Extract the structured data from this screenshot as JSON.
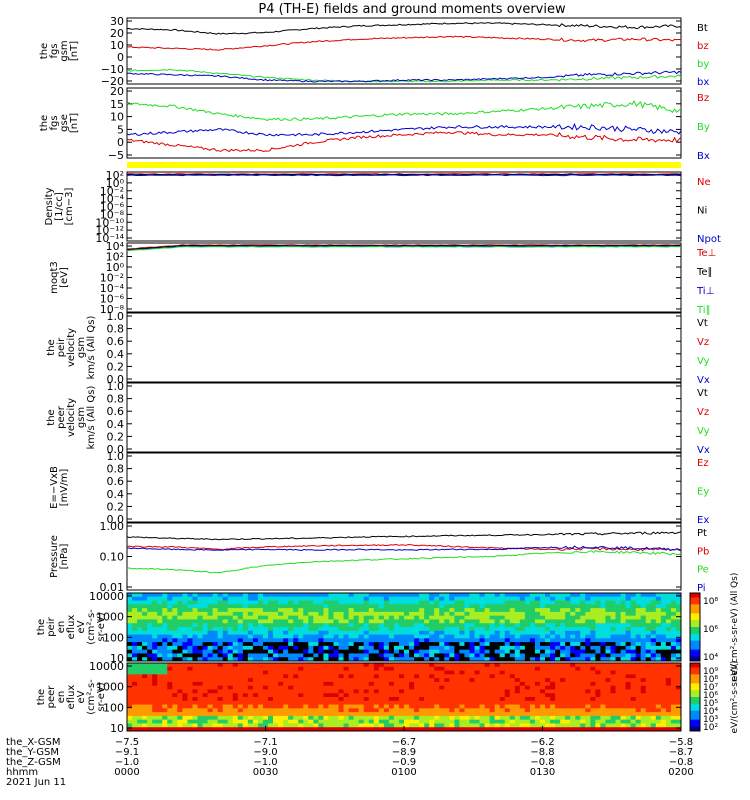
{
  "title": "P4 (TH-E) fields and ground moments overview",
  "colors": {
    "black": "#000000",
    "red": "#dd0000",
    "green": "#22dd22",
    "blue": "#0000cc",
    "yellow": "#ffff00"
  },
  "chart_data": [
    {
      "id": "p1",
      "type": "line",
      "ylabel": [
        "the",
        "fgs",
        "gsm",
        "[nT]"
      ],
      "yticks": [
        "30",
        "20",
        "10",
        "0",
        "−10",
        "−20"
      ],
      "ylim": [
        -20,
        30
      ],
      "series": [
        {
          "name": "Bt",
          "color": "black",
          "values": [
            22,
            21,
            18,
            19,
            22,
            24,
            25,
            26,
            26,
            25,
            24,
            23,
            24
          ]
        },
        {
          "name": "bz",
          "color": "red",
          "values": [
            8,
            7,
            6,
            9,
            12,
            14,
            15,
            16,
            15,
            14,
            13,
            14,
            13
          ]
        },
        {
          "name": "by",
          "color": "green",
          "values": [
            -10,
            -9,
            -12,
            -15,
            -17,
            -18,
            -18,
            -18,
            -17,
            -17,
            -16,
            -15,
            -14
          ]
        },
        {
          "name": "bx",
          "color": "blue",
          "values": [
            -12,
            -13,
            -14,
            -17,
            -18,
            -18,
            -17,
            -17,
            -16,
            -15,
            -13,
            -12,
            -11
          ]
        }
      ]
    },
    {
      "id": "p2",
      "type": "line",
      "ylabel": [
        "the",
        "fgs",
        "gse",
        "[nT]"
      ],
      "yticks": [
        "20",
        "15",
        "10",
        "5",
        "0",
        "−5"
      ],
      "ylim": [
        -7,
        20
      ],
      "series": [
        {
          "name": "Bz",
          "color": "red",
          "values": [
            0,
            -2,
            -4,
            -4,
            -1,
            1,
            2,
            3,
            2,
            2,
            1,
            0,
            0
          ]
        },
        {
          "name": "By",
          "color": "green",
          "values": [
            14,
            13,
            10,
            8,
            8,
            9,
            10,
            10,
            11,
            12,
            13,
            14,
            11
          ]
        },
        {
          "name": "Bx",
          "color": "blue",
          "values": [
            2,
            3,
            4,
            2,
            2,
            3,
            4,
            5,
            5,
            5,
            5,
            4,
            3
          ]
        }
      ]
    },
    {
      "id": "p3",
      "type": "line",
      "scale": "log",
      "ylabel": [
        "Density",
        "[1/cc]",
        "[cm−3]"
      ],
      "yticks": [
        "10²",
        "10⁰",
        "10⁻²",
        "10⁻⁴",
        "10⁻⁶",
        "10⁻⁸",
        "10⁻¹⁰",
        "10⁻¹²",
        "10⁻¹⁴"
      ],
      "series": [
        {
          "name": "Ne",
          "color": "red"
        },
        {
          "name": "Ni",
          "color": "black"
        },
        {
          "name": "Npot",
          "color": "blue"
        }
      ]
    },
    {
      "id": "p4",
      "type": "line",
      "scale": "log",
      "ylabel": [
        "moqt3",
        "[eV]"
      ],
      "yticks": [
        "10⁴",
        "10²",
        "10⁰",
        "10⁻²",
        "10⁻⁴",
        "10⁻⁶",
        "10⁻⁸"
      ],
      "series": [
        {
          "name": "Te⊥",
          "color": "red"
        },
        {
          "name": "Te∥",
          "color": "black"
        },
        {
          "name": "Ti⊥",
          "color": "blue"
        },
        {
          "name": "Ti∥",
          "color": "green"
        }
      ]
    },
    {
      "id": "p5",
      "type": "line",
      "ylabel": [
        "the",
        "peir",
        "velocity",
        "gsm",
        "km/s (All Qs)"
      ],
      "yticks": [
        "1.0",
        "0.8",
        "0.6",
        "0.4",
        "0.2",
        "0.0"
      ],
      "ylim": [
        0,
        1
      ],
      "series": [
        {
          "name": "Vt",
          "color": "black"
        },
        {
          "name": "Vz",
          "color": "red"
        },
        {
          "name": "Vy",
          "color": "green"
        },
        {
          "name": "Vx",
          "color": "blue"
        }
      ]
    },
    {
      "id": "p6",
      "type": "line",
      "ylabel": [
        "the",
        "peer",
        "velocity",
        "gsm",
        "km/s (All Qs)"
      ],
      "yticks": [
        "1.0",
        "0.8",
        "0.6",
        "0.4",
        "0.2",
        "0.0"
      ],
      "ylim": [
        0,
        1
      ],
      "series": [
        {
          "name": "Vt",
          "color": "black"
        },
        {
          "name": "Vz",
          "color": "red"
        },
        {
          "name": "Vy",
          "color": "green"
        },
        {
          "name": "Vx",
          "color": "blue"
        }
      ]
    },
    {
      "id": "p7",
      "type": "line",
      "ylabel": [
        "E=−VxB",
        "[mV/m]"
      ],
      "yticks": [
        "1.0",
        "0.8",
        "0.6",
        "0.4",
        "0.2",
        "0.0"
      ],
      "ylim": [
        0,
        1
      ],
      "series": [
        {
          "name": "Ez",
          "color": "red"
        },
        {
          "name": "Ey",
          "color": "green"
        },
        {
          "name": "Ex",
          "color": "blue"
        }
      ]
    },
    {
      "id": "p8",
      "type": "line",
      "scale": "log",
      "ylabel": [
        "Pressure",
        "[nPa]"
      ],
      "yticks": [
        "1.00",
        "0.10",
        "0.01"
      ],
      "ylim": [
        0.01,
        1.4
      ],
      "series": [
        {
          "name": "Pt",
          "color": "black",
          "values": [
            0.5,
            0.45,
            0.42,
            0.44,
            0.46,
            0.5,
            0.52,
            0.55,
            0.57,
            0.6,
            0.62,
            0.66,
            0.7
          ]
        },
        {
          "name": "Pb",
          "color": "red",
          "values": [
            0.25,
            0.24,
            0.2,
            0.24,
            0.26,
            0.27,
            0.28,
            0.25,
            0.22,
            0.2,
            0.21,
            0.2,
            0.19
          ]
        },
        {
          "name": "Pe",
          "color": "green",
          "values": [
            0.05,
            0.045,
            0.035,
            0.06,
            0.08,
            0.09,
            0.1,
            0.11,
            0.12,
            0.15,
            0.17,
            0.16,
            0.14
          ]
        },
        {
          "name": "Pi",
          "color": "blue",
          "values": [
            0.22,
            0.2,
            0.19,
            0.2,
            0.19,
            0.2,
            0.19,
            0.2,
            0.2,
            0.23,
            0.24,
            0.22,
            0.2
          ]
        }
      ]
    },
    {
      "id": "p9",
      "type": "heatmap",
      "ylabel": [
        "the",
        "peir",
        "en",
        "eflux",
        "eV",
        "(cm²-s-",
        "sr-eV)"
      ],
      "yticks": [
        "10000",
        "1000",
        "100",
        "10"
      ],
      "ylim": [
        5,
        25000
      ],
      "colorbar_ticks": [
        "10⁸",
        "10⁶",
        "10⁴"
      ],
      "colorbar_label": "eV/(cm²-s-sr-eV) (All Qs)"
    },
    {
      "id": "p10",
      "type": "heatmap",
      "ylabel": [
        "the",
        "peer",
        "en",
        "eflux",
        "eV",
        "(cm²-s-",
        "sr-eV)"
      ],
      "yticks": [
        "10000",
        "1000",
        "100",
        "10"
      ],
      "ylim": [
        5,
        25000
      ],
      "colorbar_ticks": [
        "10⁹",
        "10⁸",
        "10⁷",
        "10⁶",
        "10⁵",
        "10⁴",
        "10³",
        "10²"
      ],
      "colorbar_label": "eV/(cm²-s-sr-eV)"
    }
  ],
  "x_axis": {
    "rows": [
      {
        "label": "the_X-GSM",
        "values": [
          "−7.5",
          "−7.1",
          "−6.7",
          "−6.2",
          "−5.8"
        ]
      },
      {
        "label": "the_Y-GSM",
        "values": [
          "−9.1",
          "−9.0",
          "−8.9",
          "−8.8",
          "−8.7"
        ]
      },
      {
        "label": "the_Z-GSM",
        "values": [
          "−1.0",
          "−1.0",
          "−0.9",
          "−0.8",
          "−0.8"
        ]
      },
      {
        "label": "hhmm",
        "values": [
          "0000",
          "0030",
          "0100",
          "0130",
          "0200"
        ]
      }
    ],
    "date": "2021 Jun 11"
  }
}
